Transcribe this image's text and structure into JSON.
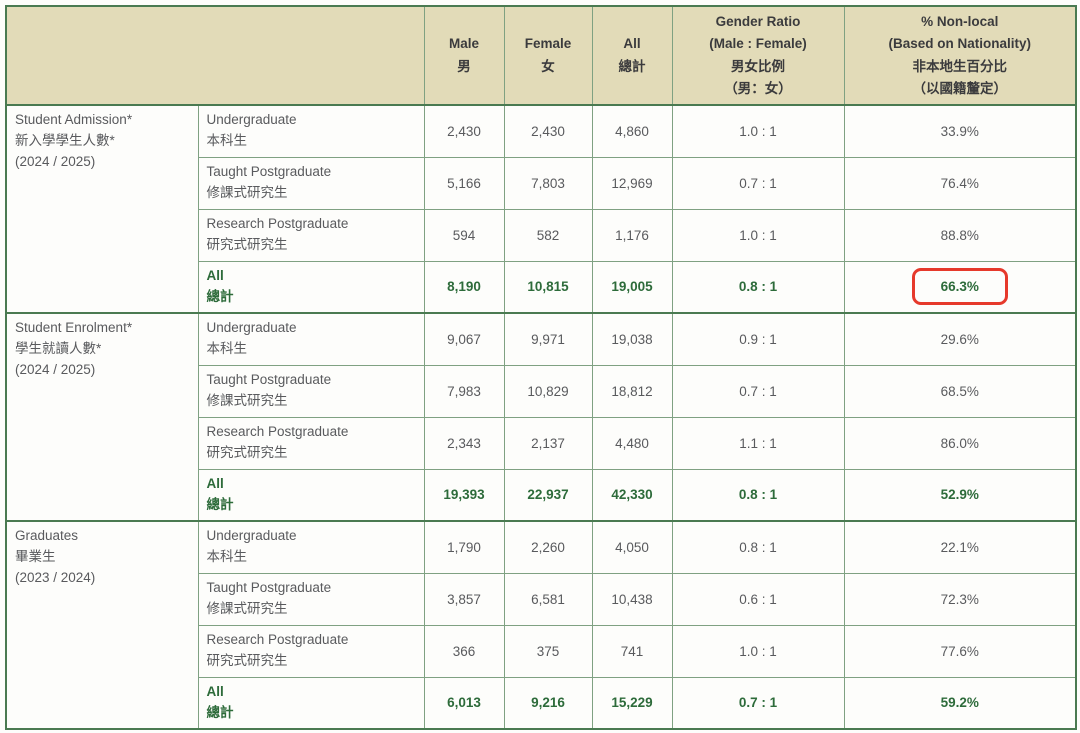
{
  "colors": {
    "header_bg": "#e2dbb8",
    "header_text": "#3b3b3d",
    "body_text": "#595a5d",
    "total_green": "#2d6b3a",
    "border_light": "#7fa182",
    "border_dark": "#4a7a51",
    "highlight_red": "#e6392b"
  },
  "table": {
    "header": {
      "male_en": "Male",
      "male_zh": "男",
      "female_en": "Female",
      "female_zh": "女",
      "all_en": "All",
      "all_zh": "總計",
      "ratio_l1": "Gender Ratio",
      "ratio_l2": "(Male : Female)",
      "ratio_l3": "男女比例",
      "ratio_l4": "（男：女）",
      "nl_l1": "% Non-local",
      "nl_l2": "(Based on Nationality)",
      "nl_l3": "非本地生百分比",
      "nl_l4": "（以國籍釐定）"
    },
    "groups": [
      {
        "label_en": "Student Admission*",
        "label_zh": "新入學學生人數*",
        "year": "(2024 / 2025)",
        "rows": [
          {
            "en": "Undergraduate",
            "zh": "本科生",
            "male": "2,430",
            "female": "2,430",
            "all": "4,860",
            "ratio": "1.0 : 1",
            "nonlocal": "33.9%"
          },
          {
            "en": "Taught Postgraduate",
            "zh": "修課式研究生",
            "male": "5,166",
            "female": "7,803",
            "all": "12,969",
            "ratio": "0.7 : 1",
            "nonlocal": "76.4%"
          },
          {
            "en": "Research Postgraduate",
            "zh": "研究式研究生",
            "male": "594",
            "female": "582",
            "all": "1,176",
            "ratio": "1.0 : 1",
            "nonlocal": "88.8%"
          }
        ],
        "total": {
          "en": "All",
          "zh": "總計",
          "male": "8,190",
          "female": "10,815",
          "all": "19,005",
          "ratio": "0.8 : 1",
          "nonlocal": "66.3%",
          "highlighted": true
        }
      },
      {
        "label_en": "Student Enrolment*",
        "label_zh": "學生就讀人數*",
        "year": "(2024 / 2025)",
        "rows": [
          {
            "en": "Undergraduate",
            "zh": "本科生",
            "male": "9,067",
            "female": "9,971",
            "all": "19,038",
            "ratio": "0.9 : 1",
            "nonlocal": "29.6%"
          },
          {
            "en": "Taught Postgraduate",
            "zh": "修課式研究生",
            "male": "7,983",
            "female": "10,829",
            "all": "18,812",
            "ratio": "0.7 : 1",
            "nonlocal": "68.5%"
          },
          {
            "en": "Research Postgraduate",
            "zh": "研究式研究生",
            "male": "2,343",
            "female": "2,137",
            "all": "4,480",
            "ratio": "1.1 : 1",
            "nonlocal": "86.0%"
          }
        ],
        "total": {
          "en": "All",
          "zh": "總計",
          "male": "19,393",
          "female": "22,937",
          "all": "42,330",
          "ratio": "0.8 : 1",
          "nonlocal": "52.9%",
          "highlighted": false
        }
      },
      {
        "label_en": "Graduates",
        "label_zh": "畢業生",
        "year": "(2023 / 2024)",
        "rows": [
          {
            "en": "Undergraduate",
            "zh": "本科生",
            "male": "1,790",
            "female": "2,260",
            "all": "4,050",
            "ratio": "0.8 : 1",
            "nonlocal": "22.1%"
          },
          {
            "en": "Taught Postgraduate",
            "zh": "修課式研究生",
            "male": "3,857",
            "female": "6,581",
            "all": "10,438",
            "ratio": "0.6 : 1",
            "nonlocal": "72.3%"
          },
          {
            "en": "Research Postgraduate",
            "zh": "研究式研究生",
            "male": "366",
            "female": "375",
            "all": "741",
            "ratio": "1.0 : 1",
            "nonlocal": "77.6%"
          }
        ],
        "total": {
          "en": "All",
          "zh": "總計",
          "male": "6,013",
          "female": "9,216",
          "all": "15,229",
          "ratio": "0.7 : 1",
          "nonlocal": "59.2%",
          "highlighted": false
        }
      }
    ]
  }
}
